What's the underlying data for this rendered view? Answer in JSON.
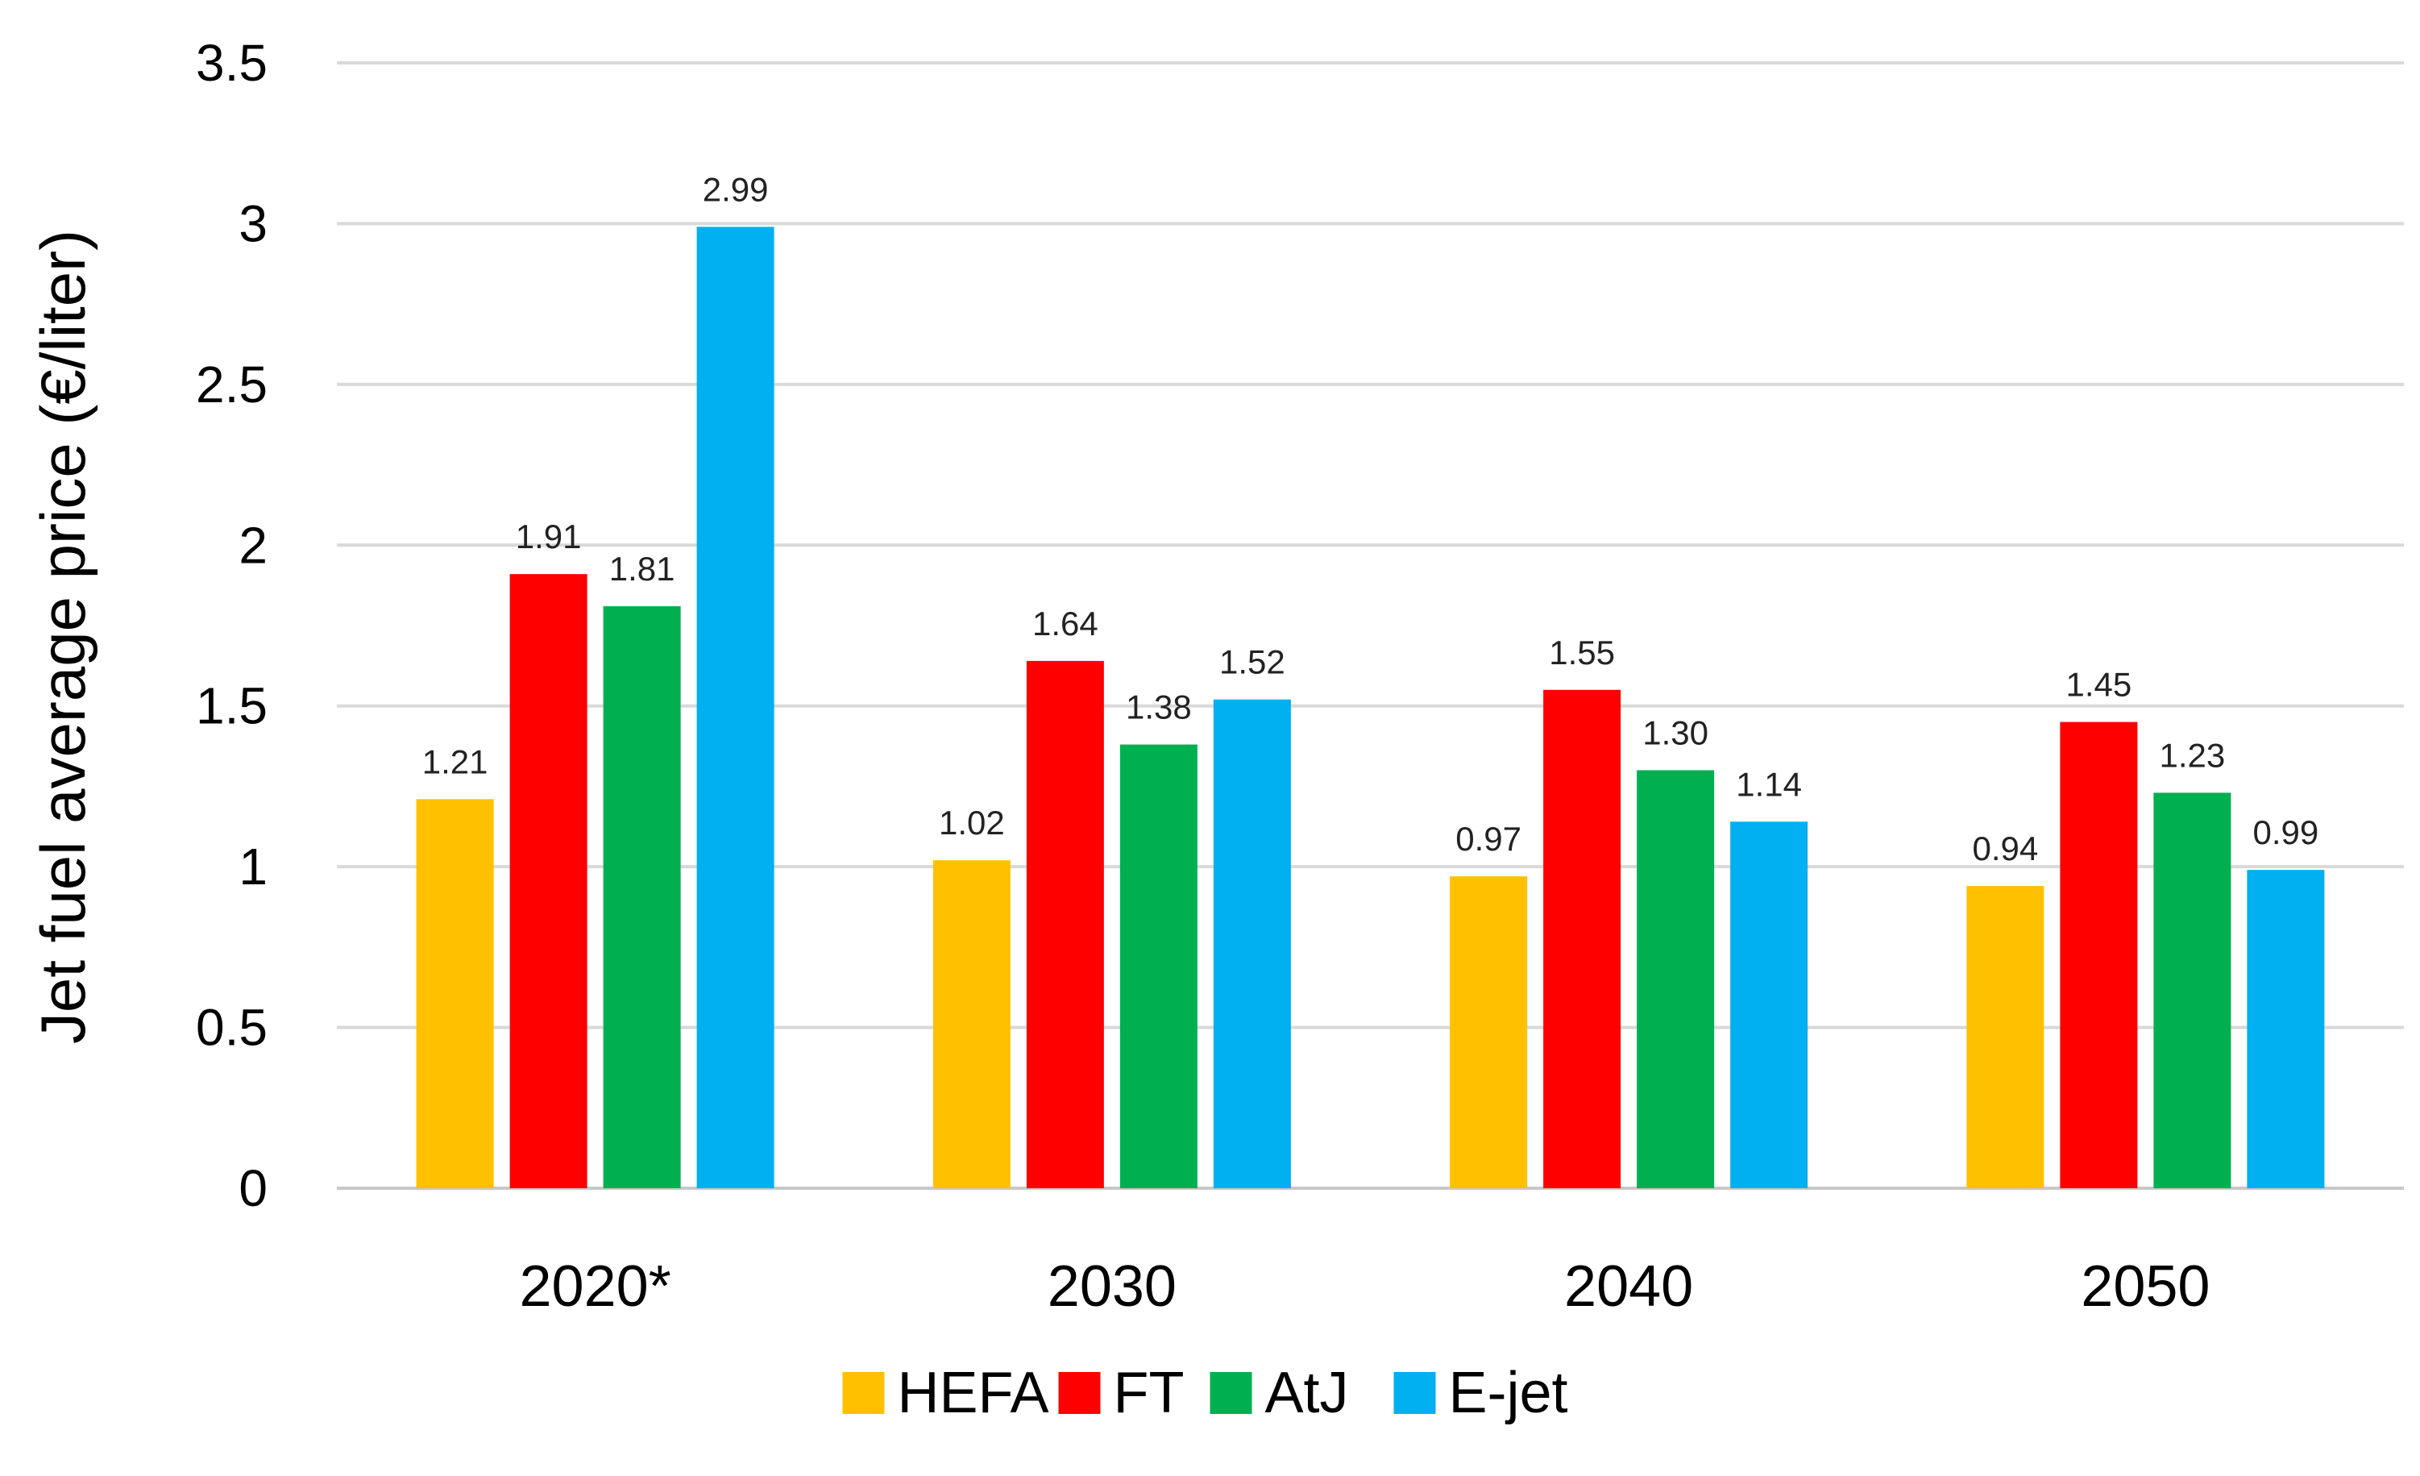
{
  "chart_data": {
    "type": "bar",
    "title": "",
    "xlabel": "",
    "ylabel": "Jet fuel average price (€/liter)",
    "ylim": [
      0,
      3.5
    ],
    "yticks": [
      0,
      0.5,
      1,
      1.5,
      2,
      2.5,
      3,
      3.5
    ],
    "ytick_labels": [
      "0",
      "0.5",
      "1",
      "1.5",
      "2",
      "2.5",
      "3",
      "3.5"
    ],
    "grid": true,
    "legend_position": "bottom",
    "categories": [
      "2020*",
      "2030",
      "2040",
      "2050"
    ],
    "series": [
      {
        "name": "HEFA",
        "color": "#FFC000",
        "values": [
          1.21,
          1.02,
          0.97,
          0.94
        ],
        "labels": [
          "1.21",
          "1.02",
          "0.97",
          "0.94"
        ]
      },
      {
        "name": "FT",
        "color": "#FF0000",
        "values": [
          1.91,
          1.64,
          1.55,
          1.45
        ],
        "labels": [
          "1.91",
          "1.64",
          "1.55",
          "1.45"
        ]
      },
      {
        "name": "AtJ",
        "color": "#00B050",
        "values": [
          1.81,
          1.38,
          1.3,
          1.23
        ],
        "labels": [
          "1.81",
          "1.38",
          "1.30",
          "1.23"
        ]
      },
      {
        "name": "E-jet",
        "color": "#00B0F0",
        "values": [
          2.99,
          1.52,
          1.14,
          0.99
        ],
        "labels": [
          "2.99",
          "1.52",
          "1.14",
          "0.99"
        ]
      }
    ]
  }
}
